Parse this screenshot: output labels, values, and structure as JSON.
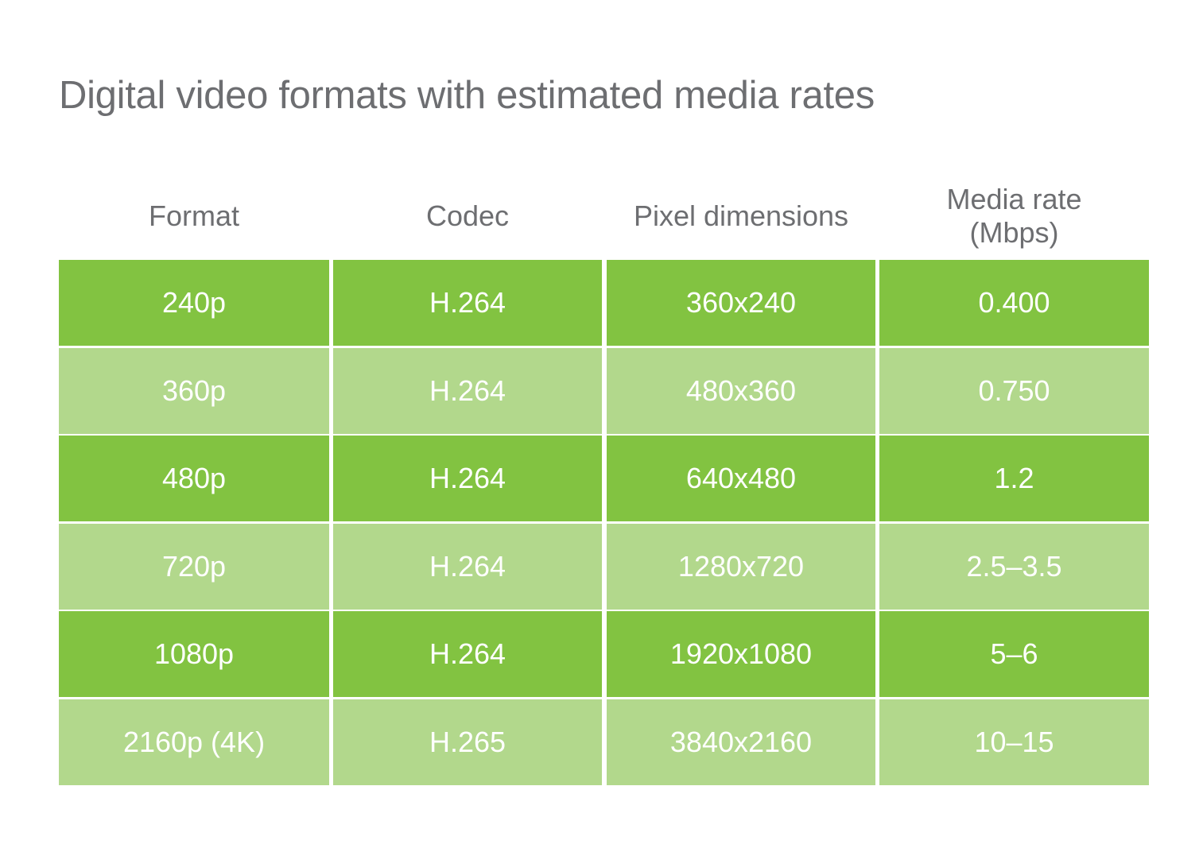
{
  "title": "Digital video formats with estimated media rates",
  "columns": [
    "Format",
    "Codec",
    "Pixel dimensions",
    "Media rate\n(Mbps)"
  ],
  "rows": [
    [
      "240p",
      "H.264",
      "360x240",
      "0.400"
    ],
    [
      "360p",
      "H.264",
      "480x360",
      "0.750"
    ],
    [
      "480p",
      "H.264",
      "640x480",
      "1.2"
    ],
    [
      "720p",
      "H.264",
      "1280x720",
      "2.5–3.5"
    ],
    [
      "1080p",
      "H.264",
      "1920x1080",
      "5–6"
    ],
    [
      "2160p (4K)",
      "H.265",
      "3840x2160",
      "10–15"
    ]
  ],
  "colors": {
    "row_dark": "#82c341",
    "row_light": "#b2d88c",
    "text_header": "#6d6e71",
    "text_cell": "#ffffff"
  }
}
